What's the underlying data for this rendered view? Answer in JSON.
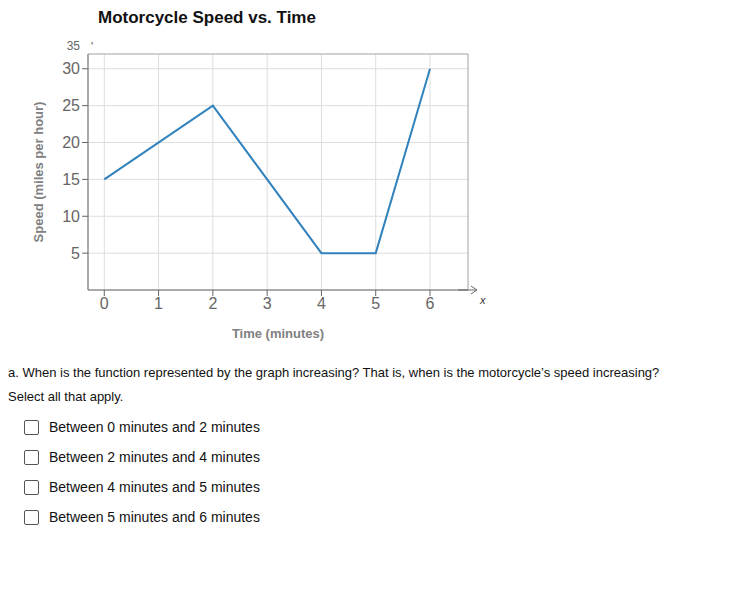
{
  "chart_data": {
    "type": "line",
    "title": "Motorcycle Speed vs. Time",
    "x_label": "Time (minutes)",
    "y_label": "Speed (miles per hour)",
    "x": [
      0,
      2,
      4,
      5,
      6
    ],
    "values": [
      15,
      25,
      5,
      5,
      30
    ],
    "xlim": [
      -0.3,
      6.7
    ],
    "ylim": [
      0,
      32
    ],
    "xticks": [
      0,
      1,
      2,
      3,
      4,
      5,
      6
    ],
    "yticks": [
      5,
      10,
      15,
      20,
      25,
      30
    ],
    "grid": true,
    "annotations": [
      "35",
      "'",
      "x"
    ],
    "question_text": "a.  When is the function represented by the graph increasing?  That is, when is the motorcycle’s speed increasing?",
    "subtext": "Select all that apply.",
    "options": [
      "Between 0 minutes and 2 minutes",
      "Between 2 minutes and 4 minutes",
      "Between 4 minutes and 5 minutes",
      "Between 5 minutes and 6 minutes"
    ]
  }
}
